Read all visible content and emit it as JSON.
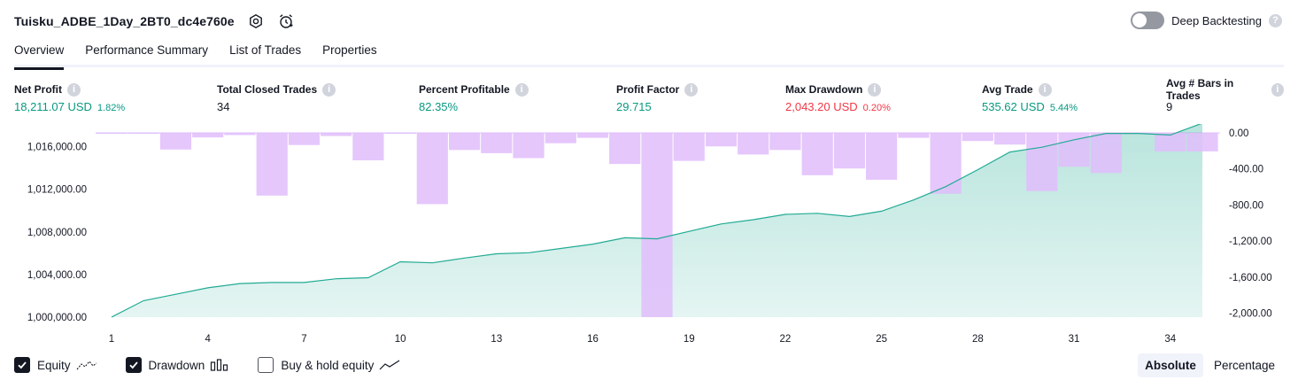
{
  "header": {
    "title": "Tuisku_ADBE_1Day_2BT0_dc4e760e",
    "deep_backtesting_label": "Deep Backtesting",
    "help_glyph": "?"
  },
  "tabs": [
    {
      "label": "Overview",
      "active": true
    },
    {
      "label": "Performance Summary",
      "active": false
    },
    {
      "label": "List of Trades",
      "active": false
    },
    {
      "label": "Properties",
      "active": false
    }
  ],
  "metrics": [
    {
      "label": "Net Profit",
      "value": "18,211.07 USD",
      "pct": "1.82%",
      "color": "green"
    },
    {
      "label": "Total Closed Trades",
      "value": "34",
      "pct": "",
      "color": "default"
    },
    {
      "label": "Percent Profitable",
      "value": "82.35%",
      "pct": "",
      "color": "green"
    },
    {
      "label": "Profit Factor",
      "value": "29.715",
      "pct": "",
      "color": "green"
    },
    {
      "label": "Max Drawdown",
      "value": "2,043.20 USD",
      "pct": "0.20%",
      "color": "red"
    },
    {
      "label": "Avg Trade",
      "value": "535.62 USD",
      "pct": "5.44%",
      "color": "green"
    },
    {
      "label": "Avg # Bars in Trades",
      "value": "9",
      "pct": "",
      "color": "default"
    }
  ],
  "legend": {
    "equity": {
      "label": "Equity",
      "checked": true
    },
    "drawdown": {
      "label": "Drawdown",
      "checked": true
    },
    "buy_hold": {
      "label": "Buy & hold equity",
      "checked": false
    }
  },
  "mode": {
    "absolute": "Absolute",
    "percentage": "Percentage",
    "selected": "Absolute"
  },
  "colors": {
    "equity_line": "#22ab94",
    "equity_fill": "#22ab94",
    "drawdown_bar": "#e1bdfb",
    "green": "#089981",
    "red": "#f23645"
  },
  "chart_data": {
    "type": "area",
    "x_ticks": [
      "1",
      "4",
      "7",
      "10",
      "13",
      "16",
      "19",
      "22",
      "25",
      "28",
      "31",
      "34"
    ],
    "y_left_ticks": [
      "1,000,000.00",
      "1,004,000.00",
      "1,008,000.00",
      "1,012,000.00",
      "1,016,000.00"
    ],
    "y_right_ticks": [
      "0.00",
      "-400.00",
      "-800.00",
      "-1,200.00",
      "-1,600.00",
      "-2,000.00"
    ],
    "y_left_range": [
      1000000,
      1017300
    ],
    "y_right_range": [
      -2043.2,
      0
    ],
    "x_range": [
      1,
      35
    ],
    "series": [
      {
        "name": "Equity",
        "kind": "line",
        "x": [
          1,
          2,
          3,
          4,
          5,
          6,
          7,
          8,
          9,
          10,
          11,
          12,
          13,
          14,
          15,
          16,
          17,
          18,
          19,
          20,
          21,
          22,
          23,
          24,
          25,
          26,
          27,
          28,
          29,
          30,
          31,
          32,
          33,
          34,
          35
        ],
        "values": [
          1000000,
          1001550,
          1002150,
          1002750,
          1003150,
          1003250,
          1003250,
          1003600,
          1003700,
          1005200,
          1005100,
          1005550,
          1005950,
          1006050,
          1006450,
          1006850,
          1007450,
          1007350,
          1008050,
          1008750,
          1009150,
          1009650,
          1009750,
          1009450,
          1009950,
          1011000,
          1012250,
          1013850,
          1015500,
          1015950,
          1016650,
          1017250,
          1017250,
          1017100,
          1018211
        ]
      },
      {
        "name": "Drawdown",
        "kind": "bar",
        "x": [
          1,
          2,
          3,
          4,
          5,
          6,
          7,
          8,
          9,
          10,
          11,
          12,
          13,
          14,
          15,
          16,
          17,
          18,
          19,
          20,
          21,
          22,
          23,
          24,
          25,
          26,
          27,
          28,
          29,
          30,
          31,
          32,
          33,
          34,
          35
        ],
        "values": [
          -8,
          -8,
          -185,
          -50,
          -25,
          -695,
          -135,
          -35,
          -305,
          -8,
          -790,
          -190,
          -225,
          -280,
          -115,
          -55,
          -345,
          -2043.2,
          -310,
          -150,
          -240,
          -190,
          -470,
          -395,
          -520,
          -55,
          -675,
          -90,
          -130,
          -645,
          -375,
          -445,
          -15,
          -205,
          -205
        ]
      }
    ]
  }
}
